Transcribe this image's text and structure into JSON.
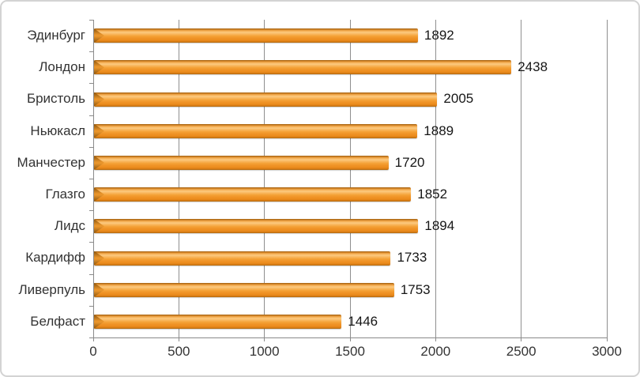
{
  "chart_data": {
    "type": "bar",
    "orientation": "horizontal",
    "title": "",
    "categories": [
      "Эдинбург",
      "Лондон",
      "Бристоль",
      "Ньюкасл",
      "Манчестер",
      "Глазго",
      "Лидс",
      "Кардифф",
      "Ливерпуль",
      "Белфаст"
    ],
    "values": [
      1892,
      2438,
      2005,
      1889,
      1720,
      1852,
      1894,
      1733,
      1753,
      1446
    ],
    "data_labels": [
      "1892",
      "2438",
      "2005",
      "1889",
      "1720",
      "1852",
      "1894",
      "1733",
      "1753",
      "1446"
    ],
    "xlabel": "",
    "ylabel": "",
    "xlim": [
      0,
      3000
    ],
    "x_ticks": [
      "0",
      "500",
      "1000",
      "1500",
      "2000",
      "2500",
      "3000"
    ],
    "x_tick_values": [
      0,
      500,
      1000,
      1500,
      2000,
      2500,
      3000
    ],
    "grid": "vertical-major",
    "legend": "none",
    "bar_color": "#F49B2D"
  },
  "styles": {
    "gridline_color": "#8f8f8f",
    "axis_color": "#8a8a8a",
    "category_label_color": "#333333",
    "tick_label_color": "#333333",
    "value_label_color": "#161616",
    "frame_border_color": "#d3d3d3",
    "background_color": "#ffffff"
  }
}
